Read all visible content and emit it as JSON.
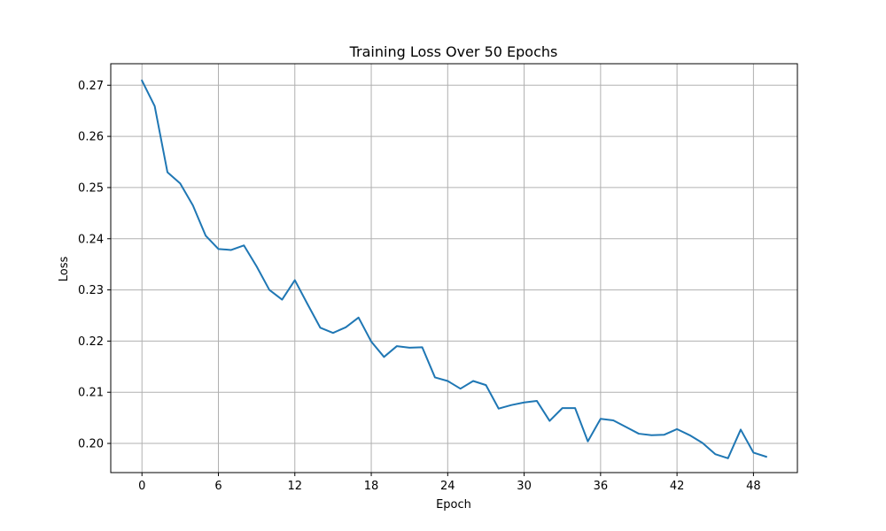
{
  "chart_data": {
    "type": "line",
    "title": "Training Loss Over 50 Epochs",
    "xlabel": "Epoch",
    "ylabel": "Loss",
    "xlim": [
      -2.45,
      51.45
    ],
    "ylim": [
      0.1943,
      0.2742
    ],
    "xticks": [
      0,
      6,
      12,
      18,
      24,
      30,
      36,
      42,
      48
    ],
    "yticks": [
      0.2,
      0.21,
      0.22,
      0.23,
      0.24,
      0.25,
      0.26,
      0.27
    ],
    "ytick_labels": [
      "0.20",
      "0.21",
      "0.22",
      "0.23",
      "0.24",
      "0.25",
      "0.26",
      "0.27"
    ],
    "grid": true,
    "line_color": "#1f77b4",
    "series": [
      {
        "x": [
          0,
          1,
          2,
          3,
          4,
          5,
          6,
          7,
          8,
          9,
          10,
          11,
          12,
          13,
          14,
          15,
          16,
          17,
          18,
          19,
          20,
          21,
          22,
          23,
          24,
          25,
          26,
          27,
          28,
          29,
          30,
          31,
          32,
          33,
          34,
          35,
          36,
          37,
          38,
          39,
          40,
          41,
          42,
          43,
          44,
          45,
          46,
          47,
          48,
          49
        ],
        "values": [
          0.2709,
          0.2659,
          0.253,
          0.2508,
          0.2465,
          0.2406,
          0.238,
          0.2378,
          0.2387,
          0.2346,
          0.23,
          0.2281,
          0.2319,
          0.2272,
          0.2226,
          0.2216,
          0.2227,
          0.2246,
          0.2199,
          0.2169,
          0.219,
          0.2187,
          0.2188,
          0.2129,
          0.2122,
          0.2107,
          0.2122,
          0.2114,
          0.2068,
          0.2075,
          0.208,
          0.2083,
          0.2044,
          0.2069,
          0.2069,
          0.2004,
          0.2048,
          0.2045,
          0.2032,
          0.2019,
          0.2016,
          0.2017,
          0.2028,
          0.2016,
          0.2001,
          0.1979,
          0.1971,
          0.2027,
          0.1982,
          0.1974
        ]
      }
    ]
  }
}
